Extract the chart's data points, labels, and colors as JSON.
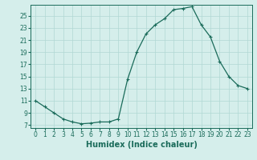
{
  "x": [
    0,
    1,
    2,
    3,
    4,
    5,
    6,
    7,
    8,
    9,
    10,
    11,
    12,
    13,
    14,
    15,
    16,
    17,
    18,
    19,
    20,
    21,
    22,
    23
  ],
  "y": [
    11,
    10,
    9,
    8,
    7.5,
    7.2,
    7.3,
    7.5,
    7.5,
    8,
    14.5,
    19,
    22,
    23.5,
    24.5,
    26,
    26.2,
    26.5,
    23.5,
    21.5,
    17.5,
    15,
    13.5,
    13
  ],
  "line_color": "#1a6b5a",
  "marker": "+",
  "marker_size": 3,
  "bg_color": "#d5eeeb",
  "grid_color": "#b0d8d3",
  "xlabel": "Humidex (Indice chaleur)",
  "ylabel": "",
  "xlim": [
    -0.5,
    23.5
  ],
  "ylim": [
    6.5,
    26.8
  ],
  "yticks": [
    7,
    9,
    11,
    13,
    15,
    17,
    19,
    21,
    23,
    25
  ],
  "xticks": [
    0,
    1,
    2,
    3,
    4,
    5,
    6,
    7,
    8,
    9,
    10,
    11,
    12,
    13,
    14,
    15,
    16,
    17,
    18,
    19,
    20,
    21,
    22,
    23
  ],
  "tick_color": "#1a6b5a",
  "xlabel_fontsize": 7,
  "tick_fontsize": 5.5,
  "line_width": 0.9,
  "markeredgewidth": 0.8,
  "spine_color": "#1a6b5a",
  "grid_linewidth": 0.5
}
